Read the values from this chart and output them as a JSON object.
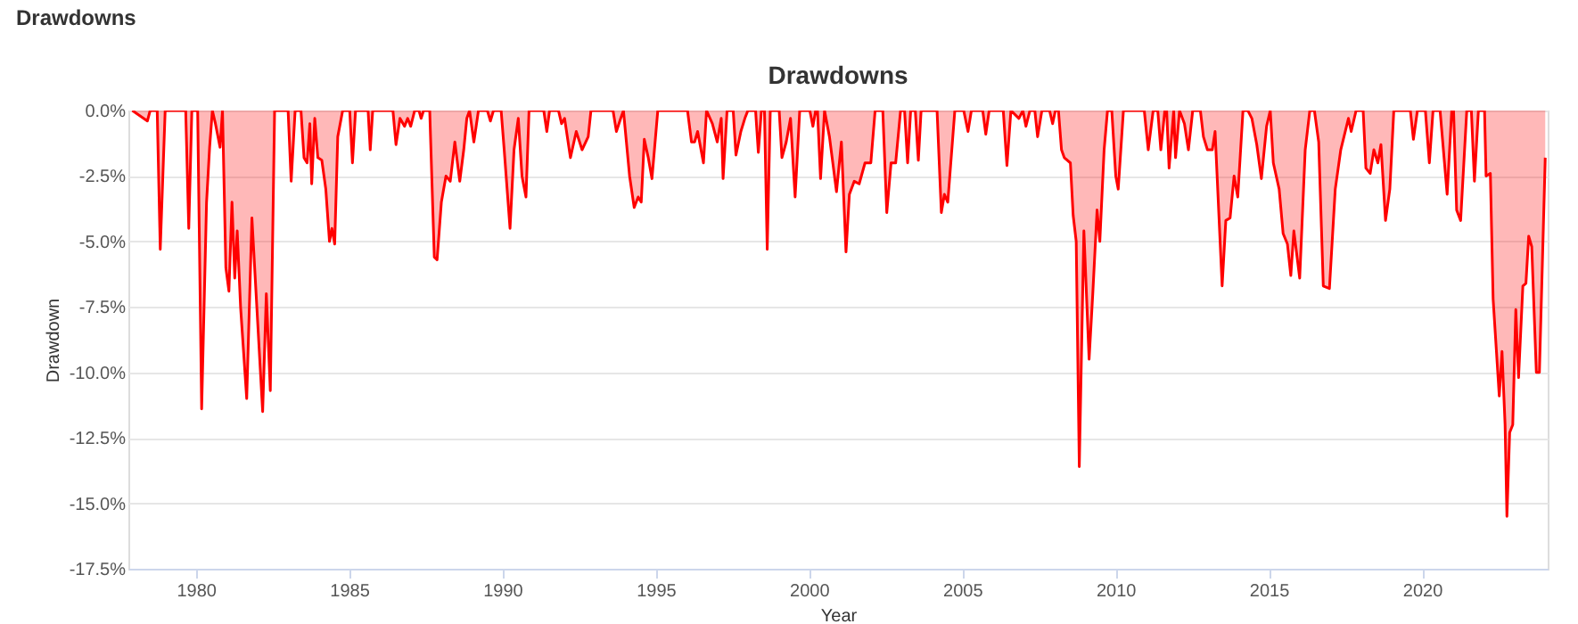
{
  "chart_data": {
    "type": "area",
    "title": "Drawdowns",
    "annotations": [
      "Drawdowns"
    ],
    "xlabel": "Year",
    "ylabel": "Drawdown",
    "xlim": [
      1977.8,
      2024.1
    ],
    "xticks": [
      1980,
      1985,
      1990,
      1995,
      2000,
      2005,
      2010,
      2015,
      2020
    ],
    "ylim": [
      -17.5,
      0
    ],
    "yticks": [
      {
        "value": 0,
        "label": "0.0%"
      },
      {
        "value": -2.5,
        "label": "-2.5%"
      },
      {
        "value": -5,
        "label": "-5.0%"
      },
      {
        "value": -7.5,
        "label": "-7.5%"
      },
      {
        "value": -10,
        "label": "-10.0%"
      },
      {
        "value": -12.5,
        "label": "-12.5%"
      },
      {
        "value": -15,
        "label": "-15.0%"
      },
      {
        "value": -17.5,
        "label": "-17.5%"
      }
    ],
    "grid": "y",
    "legend": false,
    "series": [
      {
        "color": "#ff0000",
        "x": [
          1977.93,
          1978.42,
          1978.51,
          1978.74,
          1978.84,
          1979.0,
          1979.67,
          1979.77,
          1979.87,
          1980.06,
          1980.19,
          1980.35,
          1980.45,
          1980.54,
          1980.64,
          1980.79,
          1980.87,
          1980.98,
          1981.08,
          1981.18,
          1981.27,
          1981.35,
          1981.46,
          1981.66,
          1981.83,
          1981.99,
          1982.18,
          1982.3,
          1982.43,
          1982.57,
          1983.01,
          1983.11,
          1983.24,
          1983.43,
          1983.53,
          1983.63,
          1983.72,
          1983.78,
          1983.88,
          1983.98,
          1984.11,
          1984.24,
          1984.36,
          1984.44,
          1984.53,
          1984.63,
          1984.79,
          1985.02,
          1985.11,
          1985.21,
          1985.62,
          1985.69,
          1985.77,
          1986.43,
          1986.53,
          1986.66,
          1986.81,
          1986.91,
          1987.01,
          1987.14,
          1987.28,
          1987.35,
          1987.43,
          1987.63,
          1987.78,
          1987.87,
          1988.01,
          1988.16,
          1988.3,
          1988.45,
          1988.61,
          1988.74,
          1988.84,
          1988.93,
          1989.07,
          1989.22,
          1989.51,
          1989.61,
          1989.71,
          1989.96,
          1990.06,
          1990.25,
          1990.38,
          1990.52,
          1990.64,
          1990.77,
          1990.87,
          1991.35,
          1991.45,
          1991.54,
          1991.83,
          1991.93,
          1992.03,
          1992.22,
          1992.41,
          1992.6,
          1992.8,
          1992.89,
          1993.61,
          1993.72,
          1993.86,
          1993.95,
          1994.15,
          1994.3,
          1994.43,
          1994.53,
          1994.63,
          1994.76,
          1994.88,
          1995.07,
          1996.04,
          1996.17,
          1996.27,
          1996.37,
          1996.56,
          1996.66,
          1996.85,
          1997.01,
          1997.14,
          1997.2,
          1997.33,
          1997.53,
          1997.62,
          1997.78,
          1997.91,
          1998.01,
          1998.26,
          1998.35,
          1998.45,
          1998.55,
          1998.64,
          1998.74,
          1999.03,
          1999.12,
          1999.26,
          1999.4,
          1999.55,
          1999.7,
          2000.03,
          2000.13,
          2000.22,
          2000.28,
          2000.38,
          2000.51,
          2000.67,
          2000.9,
          2001.06,
          2001.21,
          2001.32,
          2001.48,
          2001.64,
          2001.83,
          2002.02,
          2002.16,
          2002.41,
          2002.54,
          2002.68,
          2002.83,
          2002.99,
          2003.12,
          2003.22,
          2003.32,
          2003.47,
          2003.57,
          2003.66,
          2004.18,
          2004.32,
          2004.42,
          2004.53,
          2004.76,
          2005.05,
          2005.19,
          2005.3,
          2005.67,
          2005.77,
          2005.88,
          2006.34,
          2006.46,
          2006.59,
          2006.85,
          2006.98,
          2007.08,
          2007.21,
          2007.37,
          2007.46,
          2007.6,
          2007.85,
          2007.95,
          2008.04,
          2008.14,
          2008.24,
          2008.33,
          2008.53,
          2008.62,
          2008.72,
          2008.82,
          2008.97,
          2009.14,
          2009.26,
          2009.4,
          2009.49,
          2009.63,
          2009.74,
          2009.88,
          2010.01,
          2010.09,
          2010.26,
          2010.94,
          2011.07,
          2011.23,
          2011.38,
          2011.48,
          2011.61,
          2011.67,
          2011.75,
          2011.9,
          2011.96,
          2012.09,
          2012.25,
          2012.38,
          2012.52,
          2012.77,
          2012.87,
          2013.0,
          2013.16,
          2013.25,
          2013.48,
          2013.6,
          2013.74,
          2013.87,
          2013.99,
          2014.16,
          2014.32,
          2014.45,
          2014.61,
          2014.76,
          2014.93,
          2015.05,
          2015.15,
          2015.34,
          2015.47,
          2015.61,
          2015.72,
          2015.82,
          2016.01,
          2016.19,
          2016.34,
          2016.49,
          2016.63,
          2016.78,
          2016.98,
          2017.17,
          2017.35,
          2017.6,
          2017.69,
          2017.85,
          2018.08,
          2018.17,
          2018.31,
          2018.43,
          2018.56,
          2018.66,
          2018.81,
          2018.95,
          2019.08,
          2019.62,
          2019.72,
          2019.85,
          2020.11,
          2020.24,
          2020.36,
          2020.59,
          2020.82,
          2020.97,
          2021.03,
          2021.13,
          2021.26,
          2021.46,
          2021.61,
          2021.71,
          2021.84,
          2022.04,
          2022.09,
          2022.23,
          2022.32,
          2022.52,
          2022.61,
          2022.71,
          2022.77,
          2022.86,
          2022.96,
          2023.06,
          2023.15,
          2023.29,
          2023.39,
          2023.48,
          2023.58,
          2023.73,
          2023.83,
          2024.02
        ],
        "values": [
          0,
          -0.4,
          0,
          0,
          -5.3,
          0,
          0,
          -4.5,
          0,
          0,
          -11.4,
          -3.5,
          -1.4,
          0,
          -0.5,
          -1.4,
          0,
          -6.0,
          -6.9,
          -3.5,
          -6.4,
          -4.6,
          -7.5,
          -11.0,
          -4.1,
          -7.5,
          -11.5,
          -7.0,
          -10.7,
          0,
          0,
          -2.7,
          0,
          0,
          -1.8,
          -2.0,
          -0.5,
          -2.8,
          -0.3,
          -1.8,
          -1.9,
          -3.0,
          -5.0,
          -4.5,
          -5.1,
          -1.0,
          0,
          0,
          -2.0,
          0,
          0,
          -1.5,
          0,
          0,
          -1.3,
          -0.3,
          -0.6,
          -0.3,
          -0.6,
          0,
          0,
          -0.3,
          0,
          0,
          -5.6,
          -5.7,
          -3.5,
          -2.5,
          -2.7,
          -1.2,
          -2.7,
          -1.5,
          -0.3,
          0,
          -1.2,
          0,
          0,
          -0.4,
          0,
          0,
          -1.5,
          -4.5,
          -1.5,
          -0.3,
          -2.5,
          -3.3,
          0,
          0,
          -0.8,
          0,
          0,
          -0.5,
          -0.3,
          -1.8,
          -0.8,
          -1.5,
          -1.0,
          0,
          0,
          -0.8,
          -0.3,
          0,
          -2.5,
          -3.7,
          -3.3,
          -3.5,
          -1.1,
          -1.8,
          -2.6,
          0,
          0,
          -1.2,
          -1.2,
          -0.8,
          -2.0,
          0,
          -0.5,
          -1.2,
          -0.3,
          -2.6,
          0,
          0,
          -1.7,
          -0.8,
          -0.3,
          0,
          0,
          -1.6,
          0,
          0,
          -5.3,
          0,
          0,
          -1.8,
          -1.2,
          -0.3,
          -3.3,
          0,
          0,
          -0.6,
          0,
          0,
          -2.6,
          0,
          -1.0,
          -3.1,
          -1.2,
          -5.4,
          -3.2,
          -2.7,
          -2.8,
          -2.0,
          -2.0,
          0,
          0,
          -3.9,
          -2.0,
          -2.0,
          0,
          0,
          -2.0,
          0,
          0,
          -1.9,
          0,
          0,
          -3.9,
          -3.2,
          -3.5,
          0,
          0,
          -0.8,
          0,
          0,
          -0.9,
          0,
          0,
          -2.1,
          0,
          -0.3,
          0,
          -0.6,
          0,
          0,
          -1.0,
          0,
          0,
          -0.5,
          0,
          0,
          -1.5,
          -1.8,
          -2.0,
          -4.0,
          -5.0,
          -13.6,
          -4.6,
          -9.5,
          -7.0,
          -3.8,
          -5.0,
          -1.5,
          0,
          0,
          -2.5,
          -3.0,
          0,
          0,
          -1.5,
          0,
          0,
          -1.5,
          0,
          0,
          -2.2,
          0,
          -1.8,
          0,
          -0.5,
          -1.5,
          0,
          0,
          -1.0,
          -1.5,
          -1.5,
          -0.8,
          -6.7,
          -4.2,
          -4.1,
          -2.5,
          -3.3,
          0,
          0,
          -0.3,
          -1.3,
          -2.6,
          -0.6,
          0,
          -2.0,
          -3.0,
          -4.7,
          -5.1,
          -6.3,
          -4.6,
          -6.4,
          -1.5,
          0,
          0,
          -1.2,
          -6.7,
          -6.8,
          -3.0,
          -1.5,
          -0.3,
          -0.8,
          0,
          0,
          -2.2,
          -2.4,
          -1.5,
          -2.0,
          -1.3,
          -4.2,
          -3.0,
          0,
          0,
          -1.1,
          0,
          0,
          -2.0,
          0,
          0,
          -3.2,
          0,
          0,
          -3.8,
          -4.2,
          0,
          0,
          -2.7,
          0,
          0,
          -2.5,
          -2.4,
          -7.2,
          -10.9,
          -9.2,
          -12.0,
          -15.5,
          -12.3,
          -12.0,
          -7.6,
          -10.2,
          -6.7,
          -6.6,
          -4.8,
          -5.2,
          -10.0,
          -10.0,
          -1.8
        ]
      }
    ]
  }
}
